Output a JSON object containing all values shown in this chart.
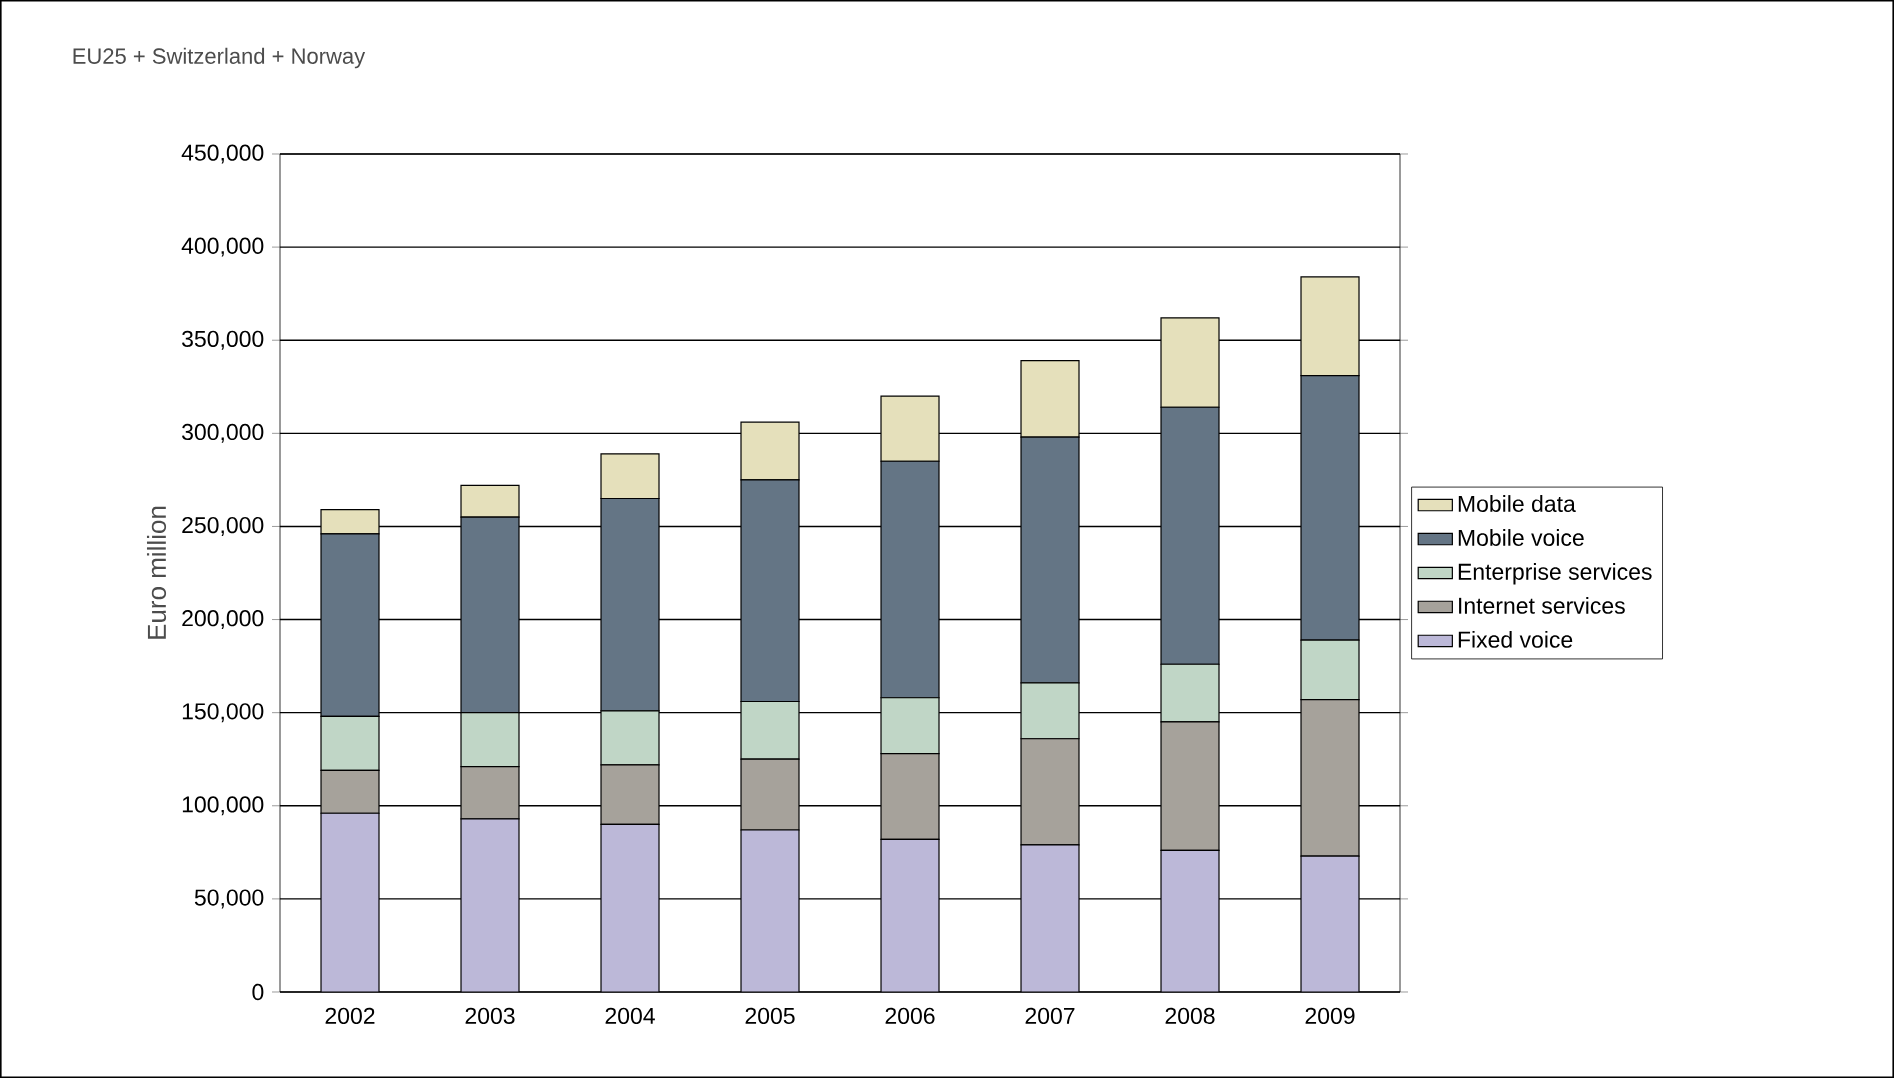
{
  "chart_data": {
    "type": "bar",
    "stacked": true,
    "title": "EU25 + Switzerland + Norway",
    "ylabel": "Euro million",
    "categories": [
      "2002",
      "2003",
      "2004",
      "2005",
      "2006",
      "2007",
      "2008",
      "2009"
    ],
    "series": [
      {
        "name": "Fixed voice",
        "color": "#bcb8d8",
        "values": [
          96000,
          93000,
          90000,
          87000,
          82000,
          79000,
          76000,
          73000
        ]
      },
      {
        "name": "Internet services",
        "color": "#a6a29b",
        "values": [
          23000,
          28000,
          32000,
          38000,
          46000,
          57000,
          69000,
          84000
        ]
      },
      {
        "name": "Enterprise services",
        "color": "#c0d6c6",
        "values": [
          29000,
          29000,
          29000,
          31000,
          30000,
          30000,
          31000,
          32000
        ]
      },
      {
        "name": "Mobile voice",
        "color": "#647585",
        "values": [
          98000,
          105000,
          114000,
          119000,
          127000,
          132000,
          138000,
          142000
        ]
      },
      {
        "name": "Mobile data",
        "color": "#e5e0bb",
        "values": [
          13000,
          17000,
          24000,
          31000,
          35000,
          41000,
          48000,
          53000
        ]
      }
    ],
    "ylim": [
      0,
      450000
    ],
    "yticks": [
      0,
      {
        "value": 50000,
        "label": "50,000"
      },
      {
        "value": 100000,
        "label": "100,000"
      },
      {
        "value": 150000,
        "label": "150,000"
      },
      {
        "value": 200000,
        "label": "200,000"
      },
      {
        "value": 250000,
        "label": "250,000"
      },
      {
        "value": 300000,
        "label": "300,000"
      },
      {
        "value": 350000,
        "label": "350,000"
      },
      {
        "value": 400000,
        "label": "400,000"
      },
      {
        "value": 450000,
        "label": "450,000"
      }
    ],
    "grid": "y",
    "legend": "right"
  }
}
